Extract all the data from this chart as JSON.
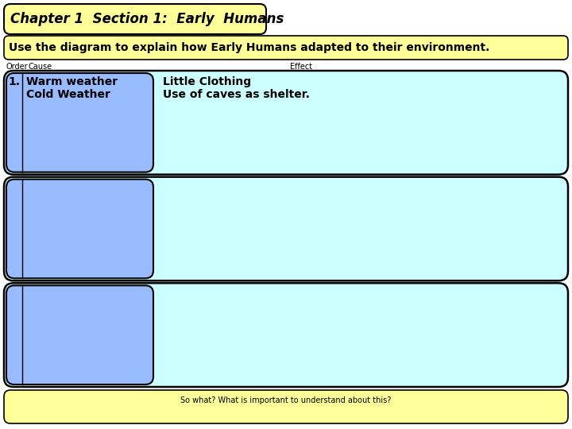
{
  "title": "Chapter 1  Section 1:  Early  Humans",
  "subtitle": "Use the diagram to explain how Early Humans adapted to their environment.",
  "order_label": "Order",
  "cause_label": "Cause",
  "effect_label": "Effect",
  "row1_number": "1.",
  "row1_cause": "Warm weather\nCold Weather",
  "row1_effect": "Little Clothing\nUse of caves as shelter.",
  "footer": "So what? What is important to understand about this?",
  "bg_color": "#ffffff",
  "title_box_color": "#ffff99",
  "subtitle_box_color": "#ffff99",
  "row_bg_color": "#b8e8ff",
  "cause_box_color": "#99bbff",
  "effect_bg_color": "#ccffff",
  "footer_color": "#ffff99",
  "title_font_size": 12,
  "subtitle_font_size": 10,
  "label_font_size": 7,
  "body_font_size": 9,
  "footer_font_size": 7
}
